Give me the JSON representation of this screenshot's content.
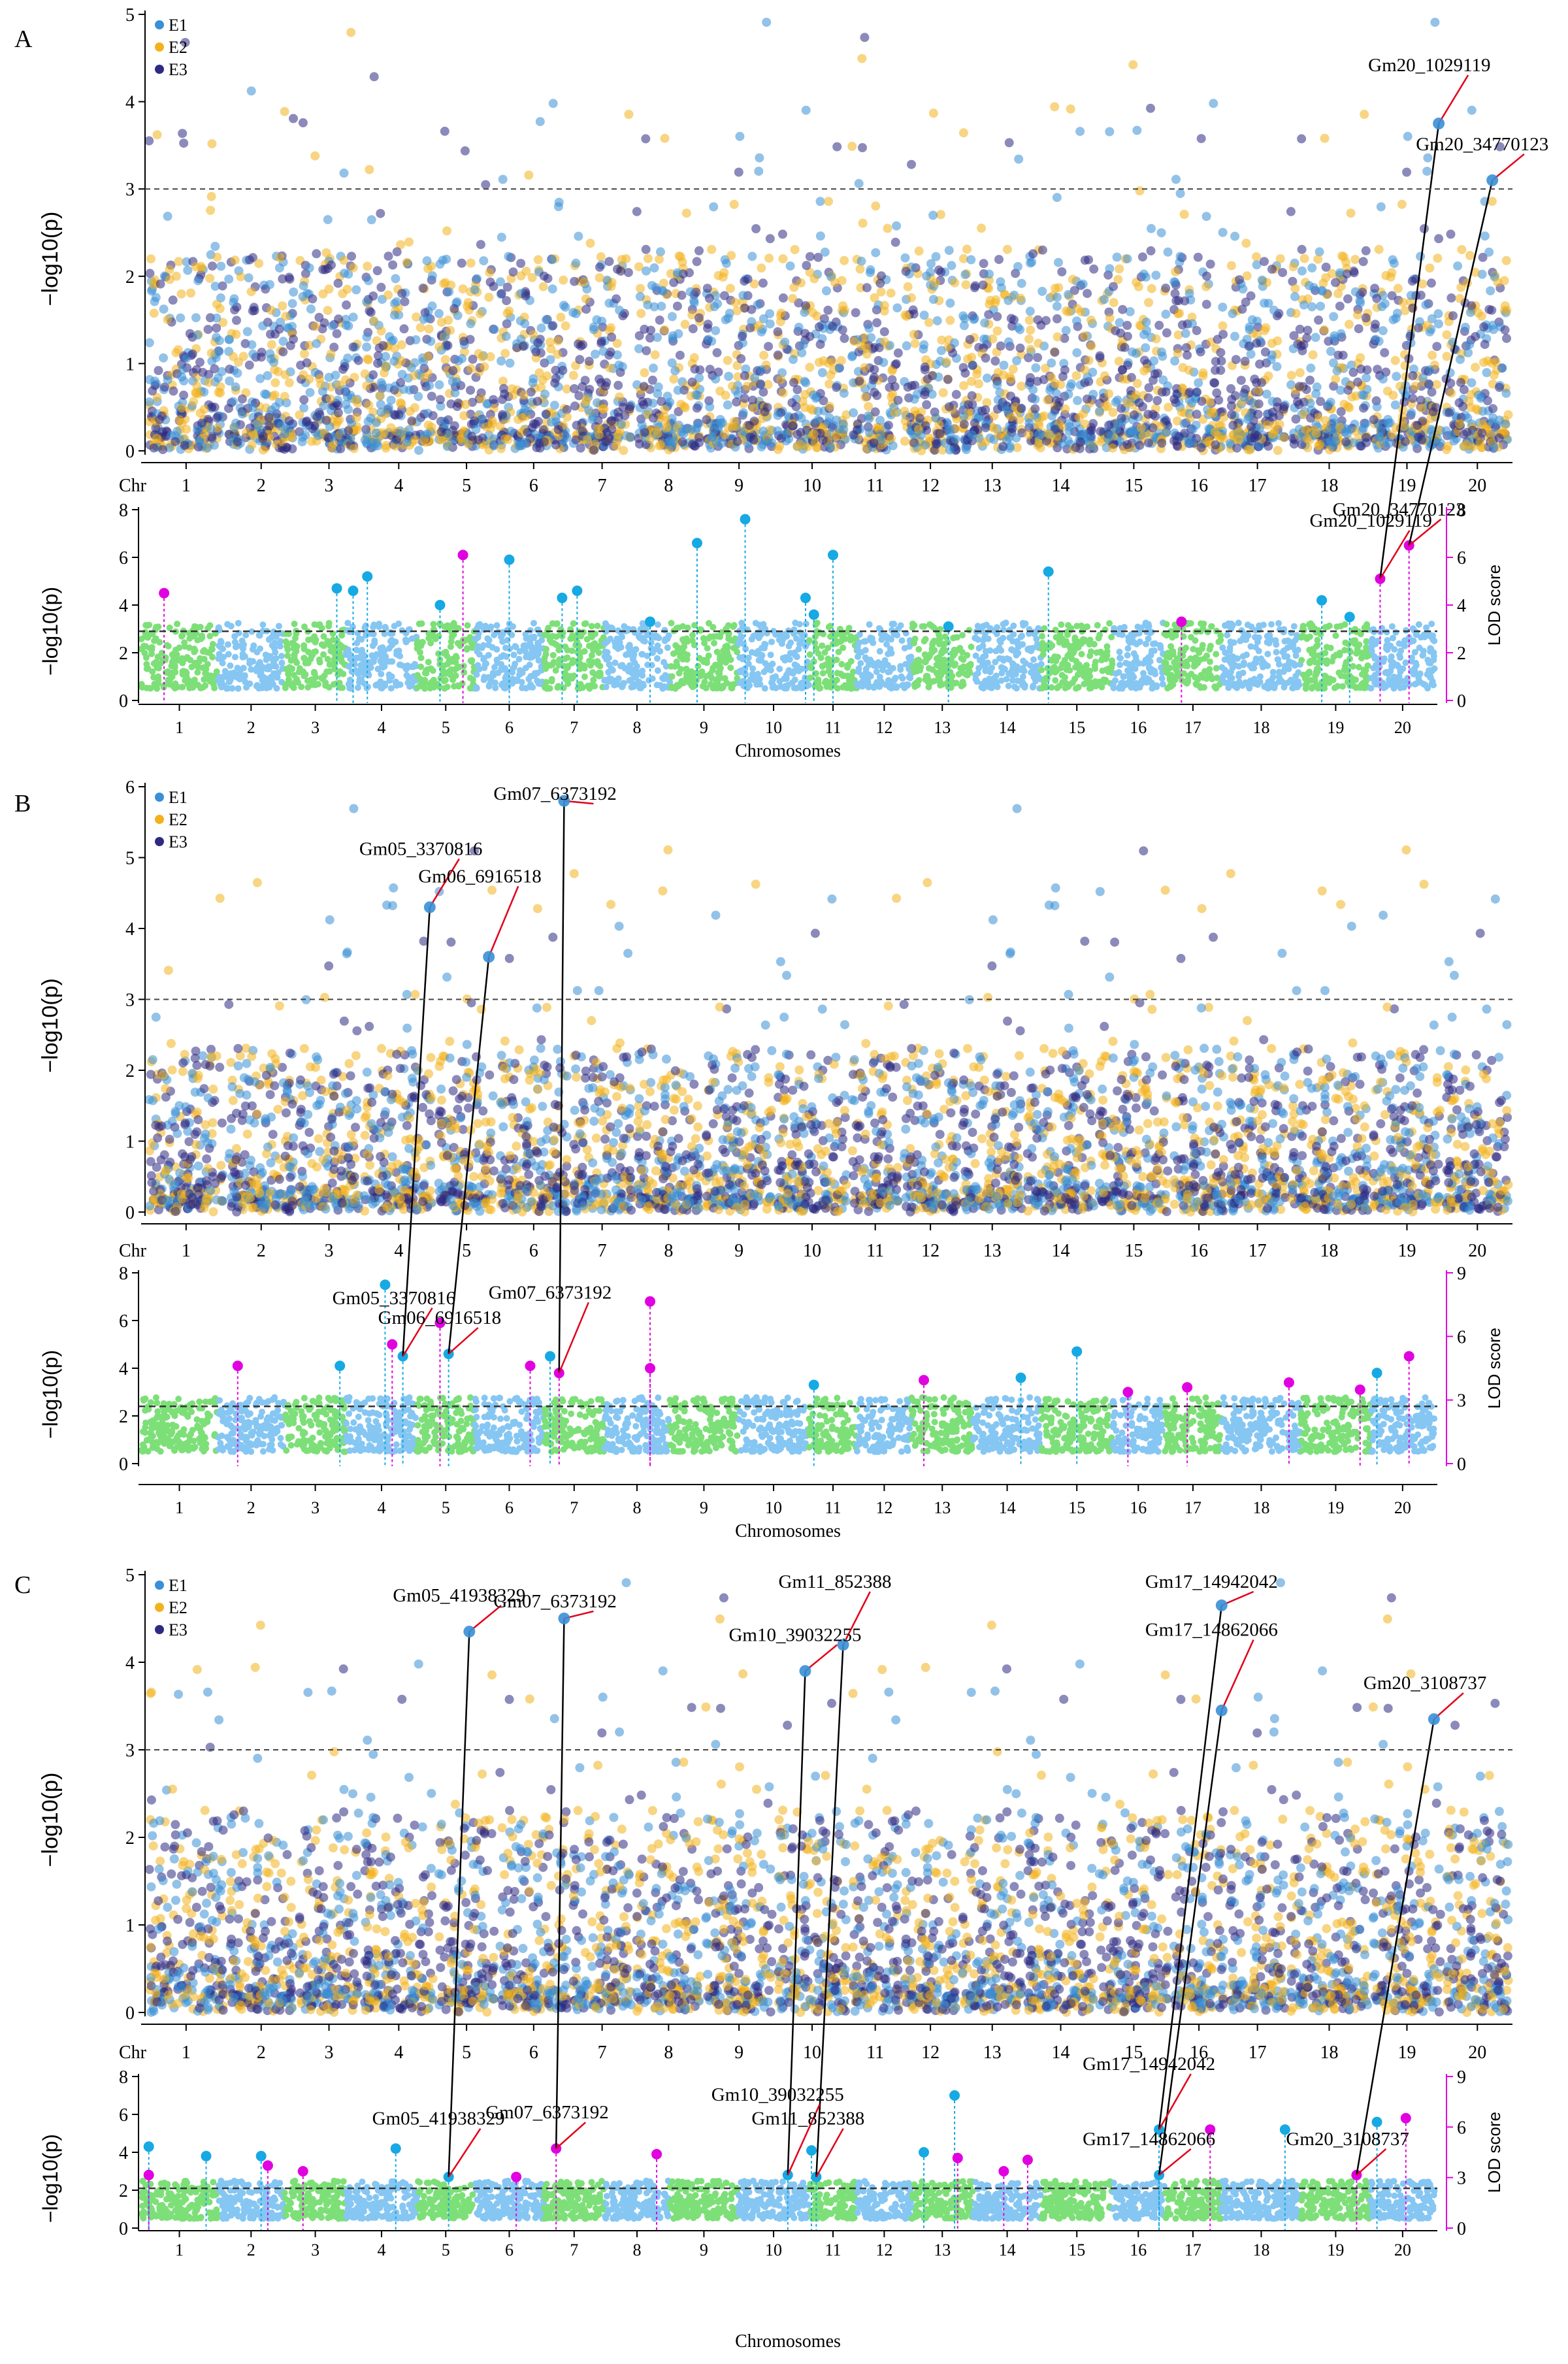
{
  "figure": {
    "legend_items": [
      {
        "label": "E1",
        "color": "#3a8fd6"
      },
      {
        "label": "E2",
        "color": "#f2b21d"
      },
      {
        "label": "E3",
        "color": "#2e2a82"
      }
    ],
    "colors": {
      "e1": "#3a8fd6",
      "e2": "#f2b21d",
      "e3": "#2e2a82",
      "green": "#7ddf78",
      "blue": "#86c6f2",
      "magenta": "#e000e0",
      "cyan": "#16a9e3",
      "connector": "#000000",
      "leader": "#e2001a"
    }
  },
  "chart_data": [
    {
      "panel": "A",
      "top": {
        "type": "scatter",
        "ylabel": "−log10(p)",
        "xprefix": "Chr",
        "ylim": [
          0,
          5
        ],
        "yticks": [
          "0",
          "1",
          "2",
          "3",
          "4",
          "5"
        ],
        "threshold": 3,
        "chromosomes": [
          "1",
          "2",
          "3",
          "4",
          "5",
          "6",
          "7",
          "8",
          "9",
          "10",
          "11",
          "12",
          "13",
          "14",
          "15",
          "16",
          "17",
          "18",
          "19",
          "20"
        ],
        "chr_sizes": [
          56,
          49,
          45,
          52,
          42,
          51,
          44,
          48,
          50,
          52,
          35,
          40,
          45,
          50,
          52,
          38,
          42,
          58,
          51,
          47
        ],
        "annotations": [
          {
            "label": "Gm20_34770123",
            "chr": 20,
            "pos": 0.74,
            "value": 3.1
          },
          {
            "label": "Gm20_1029119",
            "chr": 19,
            "pos": 0.97,
            "value": 3.75
          }
        ]
      },
      "bottom": {
        "type": "scatter",
        "xlabel": "Chromosomes",
        "ylabel": "−log10(p)",
        "ylabel_right": "LOD score",
        "ylim": [
          0,
          8
        ],
        "yticks": [
          "0",
          "2",
          "4",
          "6",
          "8"
        ],
        "lod_ticks": [
          "0",
          "2",
          "4",
          "6",
          "8"
        ],
        "threshold": 2.9,
        "chromosomes": [
          "1",
          "2",
          "3",
          "4",
          "5",
          "6",
          "7",
          "8",
          "9",
          "10",
          "11",
          "12",
          "13",
          "14",
          "15",
          "16",
          "17",
          "18",
          "19",
          "20"
        ],
        "chr_sizes": [
          56,
          49,
          45,
          52,
          42,
          51,
          44,
          48,
          50,
          52,
          35,
          40,
          45,
          50,
          52,
          38,
          42,
          58,
          51,
          47
        ],
        "peaks": [
          {
            "chr": 1,
            "pos": 0.3,
            "value": 4.5,
            "kind": "magenta"
          },
          {
            "chr": 3,
            "pos": 0.85,
            "value": 4.7,
            "kind": "cyan"
          },
          {
            "chr": 4,
            "pos": 0.1,
            "value": 4.6,
            "kind": "cyan"
          },
          {
            "chr": 4,
            "pos": 0.3,
            "value": 5.2,
            "kind": "cyan"
          },
          {
            "chr": 5,
            "pos": 0.4,
            "value": 4.0,
            "kind": "cyan"
          },
          {
            "chr": 5,
            "pos": 0.8,
            "value": 6.1,
            "kind": "magenta"
          },
          {
            "chr": 6,
            "pos": 0.5,
            "value": 5.9,
            "kind": "cyan"
          },
          {
            "chr": 7,
            "pos": 0.3,
            "value": 4.3,
            "kind": "cyan"
          },
          {
            "chr": 7,
            "pos": 0.55,
            "value": 4.6,
            "kind": "cyan"
          },
          {
            "chr": 8,
            "pos": 0.7,
            "value": 3.3,
            "kind": "cyan"
          },
          {
            "chr": 9,
            "pos": 0.4,
            "value": 6.6,
            "kind": "cyan"
          },
          {
            "chr": 10,
            "pos": 0.1,
            "value": 7.6,
            "kind": "cyan"
          },
          {
            "chr": 10,
            "pos": 0.95,
            "value": 4.3,
            "kind": "cyan"
          },
          {
            "chr": 11,
            "pos": 0.1,
            "value": 3.6,
            "kind": "cyan"
          },
          {
            "chr": 11,
            "pos": 0.5,
            "value": 6.1,
            "kind": "cyan"
          },
          {
            "chr": 13,
            "pos": 0.6,
            "value": 3.1,
            "kind": "cyan"
          },
          {
            "chr": 15,
            "pos": 0.1,
            "value": 5.4,
            "kind": "cyan"
          },
          {
            "chr": 17,
            "pos": 0.3,
            "value": 3.3,
            "kind": "magenta"
          },
          {
            "chr": 19,
            "pos": 0.3,
            "value": 4.2,
            "kind": "cyan"
          },
          {
            "chr": 19,
            "pos": 0.7,
            "value": 3.5,
            "kind": "cyan"
          },
          {
            "chr": 20,
            "pos": 0.15,
            "value": 5.1,
            "kind": "magenta"
          },
          {
            "chr": 20,
            "pos": 0.6,
            "value": 6.5,
            "kind": "magenta"
          }
        ],
        "annotations": [
          {
            "label": "Gm20_34770123",
            "chr": 20,
            "pos": 0.6,
            "value": 6.5
          },
          {
            "label": "Gm20_1029119",
            "chr": 20,
            "pos": 0.15,
            "value": 5.1
          }
        ]
      }
    },
    {
      "panel": "B",
      "top": {
        "type": "scatter",
        "ylabel": "−log10(p)",
        "xprefix": "Chr",
        "ylim": [
          0,
          6
        ],
        "yticks": [
          "0",
          "1",
          "2",
          "3",
          "4",
          "5",
          "6"
        ],
        "threshold": 3,
        "chromosomes": [
          "1",
          "2",
          "3",
          "4",
          "5",
          "6",
          "7",
          "8",
          "9",
          "10",
          "11",
          "12",
          "13",
          "14",
          "15",
          "16",
          "17",
          "18",
          "19",
          "20"
        ],
        "chr_sizes": [
          56,
          49,
          45,
          52,
          42,
          51,
          44,
          48,
          50,
          52,
          35,
          40,
          45,
          50,
          52,
          38,
          42,
          58,
          51,
          47
        ],
        "annotations": [
          {
            "label": "Gm07_6373192",
            "chr": 6,
            "pos": 0.95,
            "value": 5.8
          },
          {
            "label": "Gm05_3370816",
            "chr": 4,
            "pos": 0.95,
            "value": 4.3
          },
          {
            "label": "Gm06_6916518",
            "chr": 5,
            "pos": 0.9,
            "value": 3.6
          }
        ]
      },
      "bottom": {
        "type": "scatter",
        "xlabel": "Chromosomes",
        "ylabel": "−log10(p)",
        "ylabel_right": "LOD score",
        "ylim": [
          0,
          8
        ],
        "yticks": [
          "0",
          "2",
          "4",
          "6",
          "8"
        ],
        "lod_ticks": [
          "0",
          "3",
          "6",
          "9"
        ],
        "threshold": 2.4,
        "chromosomes": [
          "1",
          "2",
          "3",
          "4",
          "5",
          "6",
          "7",
          "8",
          "9",
          "10",
          "11",
          "12",
          "13",
          "14",
          "15",
          "16",
          "17",
          "18",
          "19",
          "20"
        ],
        "chr_sizes": [
          56,
          49,
          45,
          52,
          42,
          51,
          44,
          48,
          50,
          52,
          35,
          40,
          45,
          50,
          52,
          38,
          42,
          58,
          51,
          47
        ],
        "peaks": [
          {
            "chr": 2,
            "pos": 0.3,
            "value": 4.1,
            "kind": "magenta"
          },
          {
            "chr": 3,
            "pos": 0.9,
            "value": 4.1,
            "kind": "cyan"
          },
          {
            "chr": 4,
            "pos": 0.55,
            "value": 7.5,
            "kind": "cyan"
          },
          {
            "chr": 4,
            "pos": 0.65,
            "value": 5.0,
            "kind": "magenta"
          },
          {
            "chr": 4,
            "pos": 0.8,
            "value": 4.5,
            "kind": "cyan"
          },
          {
            "chr": 5,
            "pos": 0.4,
            "value": 5.9,
            "kind": "magenta"
          },
          {
            "chr": 5,
            "pos": 0.55,
            "value": 4.6,
            "kind": "cyan"
          },
          {
            "chr": 6,
            "pos": 0.8,
            "value": 4.1,
            "kind": "magenta"
          },
          {
            "chr": 7,
            "pos": 0.1,
            "value": 4.5,
            "kind": "cyan"
          },
          {
            "chr": 7,
            "pos": 0.25,
            "value": 3.8,
            "kind": "magenta"
          },
          {
            "chr": 8,
            "pos": 0.7,
            "value": 6.8,
            "kind": "magenta"
          },
          {
            "chr": 8,
            "pos": 0.7,
            "value": 4.0,
            "kind": "magenta"
          },
          {
            "chr": 11,
            "pos": 0.1,
            "value": 3.3,
            "kind": "cyan"
          },
          {
            "chr": 13,
            "pos": 0.2,
            "value": 3.5,
            "kind": "magenta"
          },
          {
            "chr": 14,
            "pos": 0.7,
            "value": 3.6,
            "kind": "cyan"
          },
          {
            "chr": 15,
            "pos": 0.5,
            "value": 4.7,
            "kind": "cyan"
          },
          {
            "chr": 16,
            "pos": 0.3,
            "value": 3.0,
            "kind": "magenta"
          },
          {
            "chr": 17,
            "pos": 0.4,
            "value": 3.2,
            "kind": "magenta"
          },
          {
            "chr": 18,
            "pos": 0.85,
            "value": 3.4,
            "kind": "magenta"
          },
          {
            "chr": 19,
            "pos": 0.85,
            "value": 3.1,
            "kind": "magenta"
          },
          {
            "chr": 20,
            "pos": 0.1,
            "value": 3.8,
            "kind": "cyan"
          },
          {
            "chr": 20,
            "pos": 0.6,
            "value": 4.5,
            "kind": "magenta"
          }
        ],
        "annotations": [
          {
            "label": "Gm06_6916518",
            "chr": 5,
            "pos": 0.55,
            "value": 4.6
          },
          {
            "label": "Gm05_3370816",
            "chr": 4,
            "pos": 0.8,
            "value": 4.5
          },
          {
            "label": "Gm07_6373192",
            "chr": 7,
            "pos": 0.25,
            "value": 3.8
          }
        ]
      }
    },
    {
      "panel": "C",
      "top": {
        "type": "scatter",
        "ylabel": "−log10(p)",
        "xprefix": "Chr",
        "ylim": [
          0,
          5
        ],
        "yticks": [
          "0",
          "1",
          "2",
          "3",
          "4",
          "5"
        ],
        "threshold": 3,
        "chromosomes": [
          "1",
          "2",
          "3",
          "4",
          "5",
          "6",
          "7",
          "8",
          "9",
          "10",
          "11",
          "12",
          "13",
          "14",
          "15",
          "16",
          "17",
          "18",
          "19",
          "20"
        ],
        "chr_sizes": [
          56,
          49,
          45,
          52,
          42,
          51,
          44,
          48,
          50,
          52,
          35,
          40,
          45,
          50,
          52,
          38,
          42,
          58,
          51,
          47
        ],
        "annotations": [
          {
            "label": "Gm05_41938329",
            "chr": 5,
            "pos": 0.55,
            "value": 4.35
          },
          {
            "label": "Gm07_6373192",
            "chr": 6,
            "pos": 0.95,
            "value": 4.5
          },
          {
            "label": "Gm11_852388",
            "chr": 10,
            "pos": 0.95,
            "value": 4.2
          },
          {
            "label": "Gm10_39032255",
            "chr": 10,
            "pos": 0.4,
            "value": 3.9
          },
          {
            "label": "Gm17_14942042",
            "chr": 16,
            "pos": 0.95,
            "value": 4.65
          },
          {
            "label": "Gm17_14862066",
            "chr": 16,
            "pos": 0.95,
            "value": 3.45
          },
          {
            "label": "Gm20_3108737",
            "chr": 19,
            "pos": 0.9,
            "value": 3.35
          }
        ]
      },
      "bottom": {
        "type": "scatter",
        "xlabel": "Chromosomes",
        "ylabel": "−log10(p)",
        "ylabel_right": "LOD score",
        "ylim": [
          0,
          8
        ],
        "yticks": [
          "0",
          "2",
          "4",
          "6",
          "8"
        ],
        "lod_ticks": [
          "0",
          "3",
          "6",
          "9"
        ],
        "threshold": 2.1,
        "chromosomes": [
          "1",
          "2",
          "3",
          "4",
          "5",
          "6",
          "7",
          "8",
          "9",
          "10",
          "11",
          "12",
          "13",
          "14",
          "15",
          "16",
          "17",
          "18",
          "19",
          "20"
        ],
        "chr_sizes": [
          56,
          49,
          45,
          52,
          42,
          51,
          44,
          48,
          50,
          52,
          35,
          40,
          45,
          50,
          52,
          38,
          42,
          58,
          51,
          47
        ],
        "peaks": [
          {
            "chr": 1,
            "pos": 0.1,
            "value": 4.3,
            "kind": "cyan"
          },
          {
            "chr": 1,
            "pos": 0.1,
            "value": 2.8,
            "kind": "magenta"
          },
          {
            "chr": 1,
            "pos": 0.85,
            "value": 3.8,
            "kind": "cyan"
          },
          {
            "chr": 2,
            "pos": 0.65,
            "value": 3.8,
            "kind": "cyan"
          },
          {
            "chr": 2,
            "pos": 0.75,
            "value": 3.3,
            "kind": "magenta"
          },
          {
            "chr": 3,
            "pos": 0.3,
            "value": 3.0,
            "kind": "magenta"
          },
          {
            "chr": 4,
            "pos": 0.7,
            "value": 4.2,
            "kind": "cyan"
          },
          {
            "chr": 5,
            "pos": 0.55,
            "value": 2.7,
            "kind": "cyan"
          },
          {
            "chr": 6,
            "pos": 0.6,
            "value": 2.7,
            "kind": "magenta"
          },
          {
            "chr": 7,
            "pos": 0.2,
            "value": 4.2,
            "kind": "magenta"
          },
          {
            "chr": 8,
            "pos": 0.8,
            "value": 3.9,
            "kind": "magenta"
          },
          {
            "chr": 10,
            "pos": 0.7,
            "value": 2.8,
            "kind": "cyan"
          },
          {
            "chr": 11,
            "pos": 0.05,
            "value": 4.1,
            "kind": "cyan"
          },
          {
            "chr": 11,
            "pos": 0.15,
            "value": 2.7,
            "kind": "cyan"
          },
          {
            "chr": 13,
            "pos": 0.2,
            "value": 4.0,
            "kind": "cyan"
          },
          {
            "chr": 13,
            "pos": 0.7,
            "value": 7.0,
            "kind": "cyan"
          },
          {
            "chr": 13,
            "pos": 0.75,
            "value": 3.7,
            "kind": "magenta"
          },
          {
            "chr": 14,
            "pos": 0.45,
            "value": 3.0,
            "kind": "magenta"
          },
          {
            "chr": 14,
            "pos": 0.8,
            "value": 3.6,
            "kind": "magenta"
          },
          {
            "chr": 16,
            "pos": 0.9,
            "value": 5.2,
            "kind": "cyan"
          },
          {
            "chr": 16,
            "pos": 0.9,
            "value": 2.8,
            "kind": "cyan"
          },
          {
            "chr": 17,
            "pos": 0.8,
            "value": 5.2,
            "kind": "magenta"
          },
          {
            "chr": 18,
            "pos": 0.8,
            "value": 5.2,
            "kind": "cyan"
          },
          {
            "chr": 19,
            "pos": 0.8,
            "value": 2.8,
            "kind": "magenta"
          },
          {
            "chr": 20,
            "pos": 0.1,
            "value": 5.6,
            "kind": "cyan"
          },
          {
            "chr": 20,
            "pos": 0.55,
            "value": 5.8,
            "kind": "magenta"
          }
        ],
        "annotations": [
          {
            "label": "Gm07_6373192",
            "chr": 7,
            "pos": 0.2,
            "value": 4.2
          },
          {
            "label": "Gm11_852388",
            "chr": 11,
            "pos": 0.15,
            "value": 2.7
          },
          {
            "label": "Gm17_14942042",
            "chr": 16,
            "pos": 0.9,
            "value": 5.2
          },
          {
            "label": "Gm20_3108737",
            "chr": 19,
            "pos": 0.8,
            "value": 2.8
          },
          {
            "label": "Gm05_41938329",
            "chr": 5,
            "pos": 0.55,
            "value": 2.7
          },
          {
            "label": "Gm10_39032255",
            "chr": 10,
            "pos": 0.7,
            "value": 2.8
          },
          {
            "label": "Gm17_14862066",
            "chr": 16,
            "pos": 0.9,
            "value": 2.8
          }
        ]
      }
    }
  ]
}
